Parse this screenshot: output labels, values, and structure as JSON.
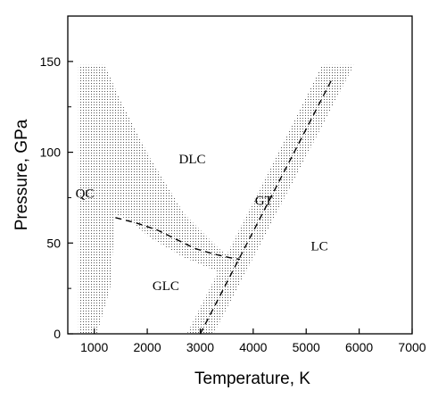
{
  "chart_data": {
    "type": "area",
    "title": "",
    "xlabel": "Temperature, K",
    "ylabel": "Pressure, GPa",
    "xlim": [
      500,
      7000
    ],
    "ylim": [
      0,
      175
    ],
    "xticks": [
      1000,
      2000,
      3000,
      4000,
      5000,
      6000,
      7000
    ],
    "yticks": [
      0,
      50,
      100,
      150
    ],
    "grid": false,
    "legend": "none",
    "regions": [
      {
        "label": "QC",
        "x": 820,
        "y": 75
      },
      {
        "label": "DLC",
        "x": 2850,
        "y": 94
      },
      {
        "label": "GT",
        "x": 4200,
        "y": 71
      },
      {
        "label": "LC",
        "x": 5250,
        "y": 46
      },
      {
        "label": "GLC",
        "x": 2350,
        "y": 24
      }
    ],
    "shaded_bands": [
      {
        "description": "QC boundary band",
        "polygon": [
          [
            700,
            148
          ],
          [
            1200,
            148
          ],
          [
            1500,
            128
          ],
          [
            2050,
            97
          ],
          [
            2700,
            66
          ],
          [
            3350,
            47
          ],
          [
            3750,
            39
          ],
          [
            3350,
            34
          ],
          [
            2700,
            42
          ],
          [
            2050,
            53
          ],
          [
            1700,
            62
          ],
          [
            1400,
            66
          ],
          [
            1300,
            25
          ],
          [
            1050,
            0
          ],
          [
            700,
            0
          ]
        ]
      },
      {
        "description": "GT transition band",
        "polygon": [
          [
            2750,
            0
          ],
          [
            3250,
            0
          ],
          [
            5900,
            148
          ],
          [
            5300,
            148
          ]
        ]
      }
    ],
    "series": [
      {
        "line_style": "dashed",
        "x": [
          1400,
          1800,
          2200,
          2550,
          2900,
          3250,
          3550,
          3750
        ],
        "y": [
          64,
          61,
          57,
          52,
          47,
          44,
          42,
          41
        ]
      },
      {
        "line_style": "dashed",
        "x": [
          3000,
          5500
        ],
        "y": [
          0,
          141
        ]
      }
    ]
  }
}
